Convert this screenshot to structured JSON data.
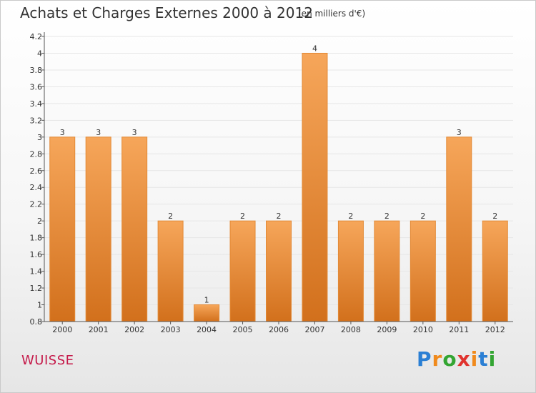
{
  "header": {
    "title": "Achats et Charges Externes 2000 à 2012",
    "subtitle": "(en milliers d'€)"
  },
  "footer": {
    "commune": "WUISSE",
    "logo": {
      "letters": [
        "P",
        "r",
        "o",
        "x",
        "i",
        "t",
        "i"
      ],
      "colors": [
        "#2a7fd4",
        "#f08a1c",
        "#33a532",
        "#e0332e",
        "#f08a1c",
        "#2a7fd4",
        "#33a532"
      ]
    }
  },
  "chart_data": {
    "type": "bar",
    "title": "Achats et Charges Externes 2000 à 2012",
    "subtitle": "(en milliers d'€)",
    "categories": [
      "2000",
      "2001",
      "2002",
      "2003",
      "2004",
      "2005",
      "2006",
      "2007",
      "2008",
      "2009",
      "2010",
      "2011",
      "2012"
    ],
    "values": [
      3,
      3,
      3,
      2,
      1,
      2,
      2,
      4,
      2,
      2,
      2,
      3,
      2
    ],
    "data_labels": [
      "3",
      "3",
      "3",
      "2",
      "1",
      "2",
      "2",
      "4",
      "2",
      "2",
      "2",
      "3",
      "2"
    ],
    "ylim": [
      0.8,
      4.2
    ],
    "yticks": [
      0.8,
      1,
      1.2,
      1.4,
      1.6,
      1.8,
      2,
      2.2,
      2.4,
      2.6,
      2.8,
      3,
      3.2,
      3.4,
      3.6,
      3.8,
      4,
      4.2
    ],
    "ytick_labels": [
      "0.8",
      "1",
      "1.2",
      "1.4",
      "1.6",
      "1.8",
      "2",
      "2.2",
      "2.4",
      "2.6",
      "2.8",
      "3",
      "3.2",
      "3.4",
      "3.6",
      "3.8",
      "4",
      "4.2"
    ],
    "xlabel": "",
    "ylabel": "",
    "grid": true,
    "colors": {
      "bar_light": "#f6a65a",
      "bar_dark": "#d2701c",
      "bar_edge": "#e38a36",
      "grid": "#e6e6e6",
      "axis": "#555555"
    }
  }
}
